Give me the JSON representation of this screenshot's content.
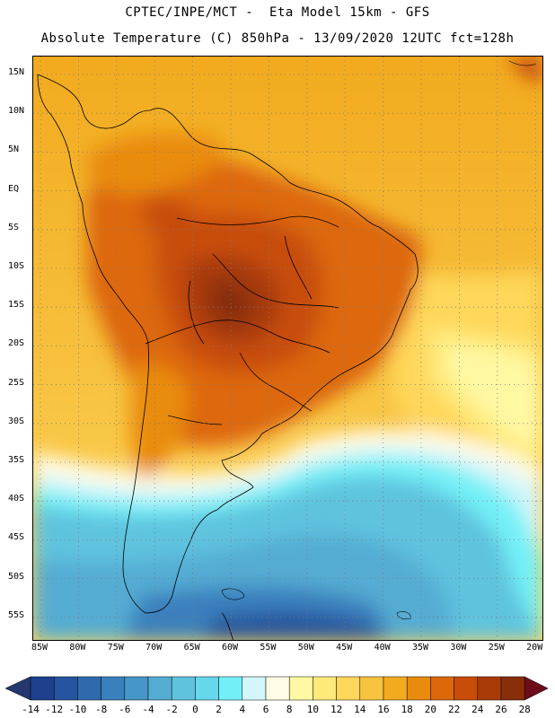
{
  "header": {
    "title_line1": "CPTEC/INPE/MCT -  Eta Model 15km - GFS",
    "title_line2": "Absolute Temperature (C) 850hPa - 13/09/2020 12UTC fct=128h"
  },
  "map": {
    "lat_labels": [
      "15N",
      "10N",
      "5N",
      "EQ",
      "5S",
      "10S",
      "15S",
      "20S",
      "25S",
      "30S",
      "35S",
      "40S",
      "45S",
      "50S",
      "55S"
    ],
    "lon_labels": [
      "85W",
      "80W",
      "75W",
      "70W",
      "65W",
      "60W",
      "55W",
      "50W",
      "45W",
      "40W",
      "35W",
      "30W",
      "25W",
      "20W"
    ],
    "grid": "dotted"
  },
  "colorbar": {
    "labels": [
      "-14",
      "-12",
      "-10",
      "-8",
      "-6",
      "-4",
      "-2",
      "0",
      "2",
      "4",
      "6",
      "8",
      "10",
      "12",
      "14",
      "16",
      "18",
      "20",
      "22",
      "24",
      "26",
      "28"
    ],
    "colors": [
      "#1f3f8f",
      "#27549e",
      "#2f6aad",
      "#3a80bd",
      "#4796c8",
      "#55acd3",
      "#5fc3de",
      "#66d8eb",
      "#73f0f7",
      "#d3f6fb",
      "#fffbe6",
      "#fff8a3",
      "#ffe97a",
      "#ffd75a",
      "#f7c240",
      "#f2aa1e",
      "#e98b0e",
      "#dd680a",
      "#c84d08",
      "#a83a08",
      "#872e0a"
    ],
    "under_color": "#24386f",
    "over_color": "#6e0d1a"
  }
}
